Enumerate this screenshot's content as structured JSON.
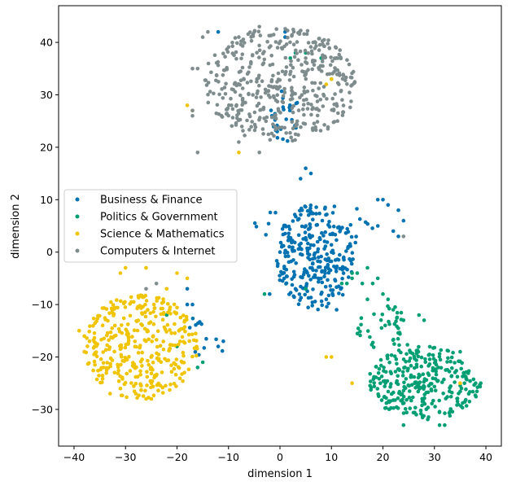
{
  "chart_data": {
    "type": "scatter",
    "title": "",
    "xlabel": "dimension 1",
    "ylabel": "dimension 2",
    "xlim": [
      -43,
      43
    ],
    "ylim": [
      -37,
      47
    ],
    "xticks": [
      -40,
      -30,
      -20,
      -10,
      0,
      10,
      20,
      30,
      40
    ],
    "yticks": [
      -30,
      -20,
      -10,
      0,
      10,
      20,
      30,
      40
    ],
    "grid": false,
    "legend_position": "center-left",
    "series": [
      {
        "name": "Business & Finance",
        "color": "#0072b2",
        "clusters": [
          {
            "cx": 7,
            "cy": -1,
            "rx": 8,
            "ry": 10,
            "n": 260
          },
          {
            "cx": 7,
            "cy": 5,
            "rx": 12,
            "ry": 5,
            "n": 40
          },
          {
            "cx": 1,
            "cy": 26,
            "rx": 3,
            "ry": 5,
            "n": 28
          },
          {
            "cx": -14,
            "cy": -16,
            "rx": 4,
            "ry": 5,
            "n": 12
          }
        ],
        "points": [
          [
            5,
            16
          ],
          [
            4,
            14
          ],
          [
            6,
            15
          ],
          [
            20,
            10
          ],
          [
            19,
            10
          ],
          [
            21,
            9
          ],
          [
            23,
            8
          ],
          [
            24,
            6
          ],
          [
            19,
            5
          ],
          [
            22,
            4
          ],
          [
            1,
            42
          ],
          [
            1,
            41
          ],
          [
            -12,
            42
          ],
          [
            3,
            -7
          ],
          [
            11,
            -11
          ],
          [
            -18,
            -7
          ],
          [
            -11,
            -17
          ],
          [
            -12,
            -18
          ],
          [
            -18,
            -10
          ],
          [
            -17,
            -10
          ],
          [
            -2,
            -8
          ],
          [
            9,
            -9
          ],
          [
            8,
            -8
          ],
          [
            0,
            0
          ],
          [
            10,
            0
          ],
          [
            23,
            3
          ]
        ]
      },
      {
        "name": "Politics & Government",
        "color": "#009e73",
        "clusters": [
          {
            "cx": 28,
            "cy": -25,
            "rx": 11,
            "ry": 7,
            "n": 300
          },
          {
            "cx": 20,
            "cy": -15,
            "rx": 6,
            "ry": 5,
            "n": 40
          }
        ],
        "points": [
          [
            18,
            -6
          ],
          [
            16,
            -6
          ],
          [
            14,
            -5
          ],
          [
            19,
            -5
          ],
          [
            20,
            -8
          ],
          [
            21,
            -9
          ],
          [
            22,
            -11
          ],
          [
            24,
            -13
          ],
          [
            27,
            -12
          ],
          [
            28,
            -13
          ],
          [
            35,
            -19
          ],
          [
            38,
            -25
          ],
          [
            39,
            -25
          ],
          [
            24,
            -33
          ],
          [
            31,
            -33
          ],
          [
            32,
            -33
          ],
          [
            -3,
            -8
          ],
          [
            5,
            -7
          ],
          [
            14,
            -4
          ],
          [
            15,
            -4
          ],
          [
            -22,
            -12
          ],
          [
            -20,
            -18
          ],
          [
            -16,
            -22
          ],
          [
            -15,
            -21
          ],
          [
            17,
            -3
          ],
          [
            2,
            37
          ],
          [
            3,
            38
          ],
          [
            5,
            38
          ],
          [
            8,
            37
          ],
          [
            10,
            33
          ],
          [
            13,
            -6
          ],
          [
            12,
            -6
          ],
          [
            17,
            -9
          ]
        ]
      },
      {
        "name": "Science & Mathematics",
        "color": "#f0c400",
        "clusters": [
          {
            "cx": -27,
            "cy": -18,
            "rx": 11,
            "ry": 10,
            "n": 360
          }
        ],
        "points": [
          [
            -30,
            -3
          ],
          [
            -31,
            -4
          ],
          [
            -26,
            -3
          ],
          [
            -20,
            -4
          ],
          [
            -18,
            -5
          ],
          [
            -22,
            -7
          ],
          [
            -39,
            -15
          ],
          [
            -38,
            -16
          ],
          [
            -37,
            -17
          ],
          [
            -38,
            -19
          ],
          [
            10,
            -20
          ],
          [
            9,
            -20
          ],
          [
            14,
            -25
          ],
          [
            35,
            -25
          ],
          [
            10,
            33
          ],
          [
            9,
            32
          ],
          [
            -18,
            28
          ],
          [
            -17,
            27
          ],
          [
            -8,
            19
          ],
          [
            -28,
            -27
          ],
          [
            -26,
            -28
          ],
          [
            -25,
            -28
          ],
          [
            -31,
            -26
          ],
          [
            -33,
            -27
          ]
        ]
      },
      {
        "name": "Computers & Internet",
        "color": "#7f8c8d",
        "clusters": [
          {
            "cx": 0,
            "cy": 32,
            "rx": 15,
            "ry": 11,
            "n": 460
          }
        ],
        "points": [
          [
            -16,
            19
          ],
          [
            -17,
            35
          ],
          [
            -16,
            35
          ],
          [
            -17,
            27
          ],
          [
            -17,
            26
          ],
          [
            24,
            3
          ],
          [
            -24,
            -6
          ],
          [
            -26,
            -7
          ],
          [
            -8,
            21
          ],
          [
            -4,
            19
          ],
          [
            -4,
            43
          ],
          [
            -5,
            42
          ],
          [
            -8,
            41
          ],
          [
            -14,
            42
          ],
          [
            -15,
            41
          ],
          [
            5,
            37
          ]
        ]
      }
    ]
  }
}
